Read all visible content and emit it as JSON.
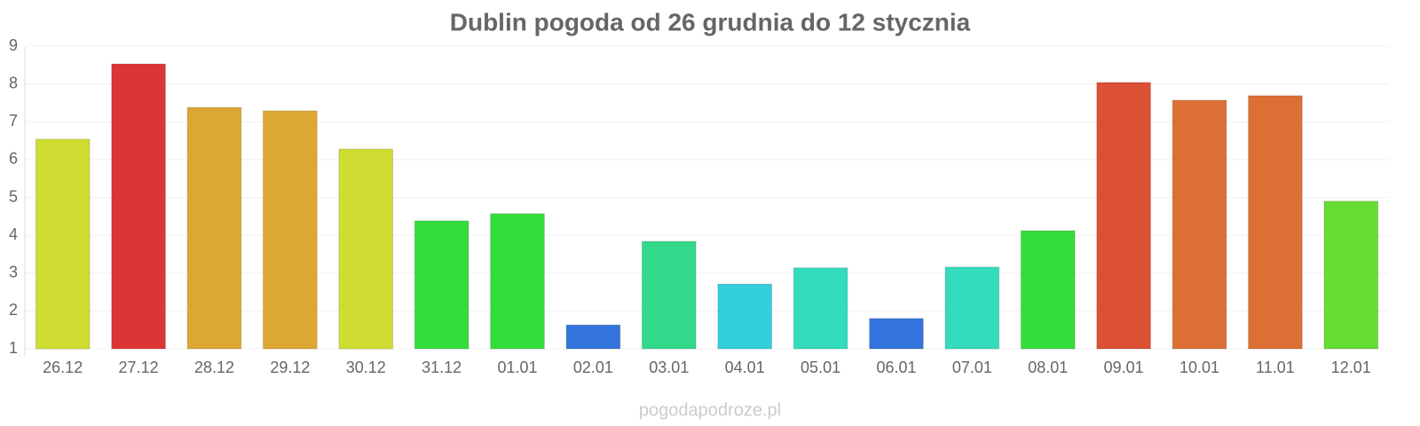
{
  "chart_data": {
    "type": "bar",
    "title": "Dublin pogoda od 26 grudnia do 12 stycznia",
    "categories": [
      "26.12",
      "27.12",
      "28.12",
      "29.12",
      "30.12",
      "31.12",
      "01.01",
      "02.01",
      "03.01",
      "04.01",
      "05.01",
      "06.01",
      "07.01",
      "08.01",
      "09.01",
      "10.01",
      "11.01",
      "12.01"
    ],
    "values": [
      6.54,
      8.53,
      7.38,
      7.29,
      6.28,
      4.38,
      4.57,
      1.63,
      3.84,
      2.71,
      3.14,
      1.8,
      3.16,
      4.12,
      8.04,
      7.57,
      7.69,
      4.9
    ],
    "colors": [
      "#cfdd33",
      "#dc3535",
      "#dca733",
      "#dca733",
      "#cfdd33",
      "#33dd3a",
      "#33dd3a",
      "#3375dc",
      "#33d98a",
      "#33cfdc",
      "#33dcbd",
      "#3375dc",
      "#33dcbd",
      "#33dd3a",
      "#dc5033",
      "#dc6f33",
      "#dc6f33",
      "#66dd33"
    ],
    "ylim": [
      1,
      9
    ],
    "yticks": [
      1,
      2,
      3,
      4,
      5,
      6,
      7,
      8,
      9
    ],
    "grid": true,
    "watermark": "pogodapodroze.pl"
  }
}
